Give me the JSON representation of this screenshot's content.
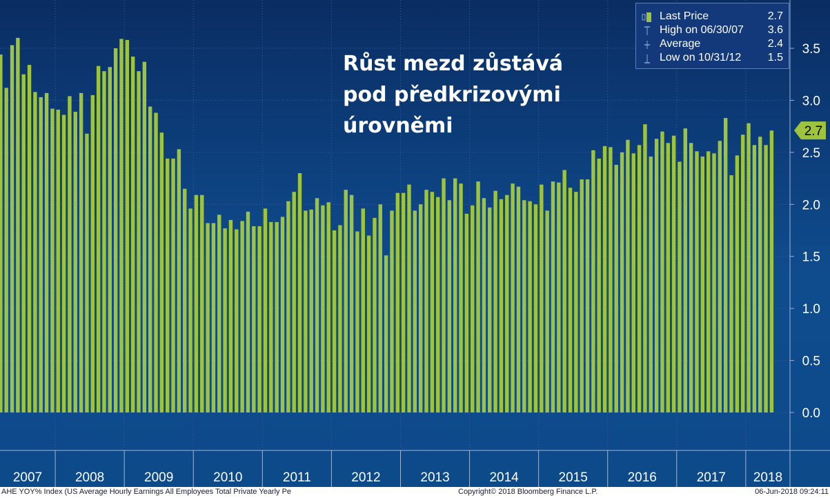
{
  "headline": {
    "line1": "Růst mezd zůstává",
    "line2": "pod předkrizovými",
    "line3": "úrovněmi"
  },
  "legend": {
    "items": [
      {
        "label": "Last Price",
        "value": "2.7"
      },
      {
        "label": "High on 06/30/07",
        "value": "3.6"
      },
      {
        "label": "Average",
        "value": "2.4"
      },
      {
        "label": "Low on 10/31/12",
        "value": "1.5"
      }
    ]
  },
  "last_price_tag": "2.7",
  "footer": {
    "index_name": "AHE YOY% Index (US Average Hourly Earnings All Employees Total Private Yearly Pe",
    "copyright": "Copyright© 2018 Bloomberg Finance L.P.",
    "timestamp": "06-Jun-2018 09:24:11"
  },
  "colors": {
    "bar": "#9dc43c",
    "background_top": "#0a2d63",
    "background_bottom": "#0d4a8a",
    "last_price_tag": "#9dc43c"
  },
  "chart_data": {
    "type": "bar",
    "title": "",
    "xlabel": "",
    "ylabel": "",
    "y_axis_side": "right",
    "ylim": [
      -0.3,
      3.95
    ],
    "y_ticks": [
      "0.0",
      "0.5",
      "1.0",
      "1.5",
      "2.0",
      "2.5",
      "3.0",
      "3.5"
    ],
    "x_ticks": [
      "2007",
      "2008",
      "2009",
      "2010",
      "2011",
      "2012",
      "2013",
      "2014",
      "2015",
      "2016",
      "2017",
      "2018"
    ],
    "grid": true,
    "legend_position": "top-right",
    "first_period": "2007-03",
    "frequency": "monthly",
    "series": [
      {
        "name": "Last Price",
        "values": [
          3.44,
          3.12,
          3.53,
          3.6,
          3.25,
          3.34,
          3.08,
          3.03,
          3.07,
          2.92,
          2.91,
          2.86,
          3.04,
          2.89,
          3.07,
          2.68,
          3.05,
          3.33,
          3.28,
          3.32,
          3.5,
          3.59,
          3.58,
          3.42,
          3.28,
          3.37,
          2.94,
          2.88,
          2.69,
          2.44,
          2.44,
          2.53,
          2.15,
          1.96,
          2.09,
          2.09,
          1.82,
          1.82,
          1.9,
          1.77,
          1.85,
          1.76,
          1.84,
          1.93,
          1.79,
          1.79,
          1.96,
          1.83,
          1.83,
          1.88,
          2.03,
          2.12,
          2.3,
          1.94,
          1.95,
          2.06,
          1.99,
          2.02,
          1.75,
          1.8,
          2.14,
          2.09,
          1.74,
          1.96,
          1.7,
          1.87,
          2.0,
          1.51,
          1.94,
          2.11,
          2.11,
          2.19,
          1.94,
          2.0,
          2.14,
          2.12,
          2.07,
          2.25,
          2.04,
          2.25,
          2.2,
          1.91,
          1.99,
          2.22,
          2.06,
          1.97,
          2.13,
          2.05,
          2.09,
          2.2,
          2.17,
          2.04,
          2.03,
          2.0,
          2.19,
          1.94,
          2.22,
          2.21,
          2.33,
          2.16,
          2.12,
          2.24,
          2.24,
          2.52,
          2.44,
          2.56,
          2.55,
          2.38,
          2.5,
          2.62,
          2.49,
          2.57,
          2.77,
          2.46,
          2.63,
          2.7,
          2.59,
          2.66,
          2.41,
          2.73,
          2.59,
          2.51,
          2.46,
          2.51,
          2.49,
          2.61,
          2.83,
          2.28,
          2.47,
          2.67,
          2.78,
          2.57,
          2.65,
          2.57,
          2.71
        ]
      }
    ]
  }
}
